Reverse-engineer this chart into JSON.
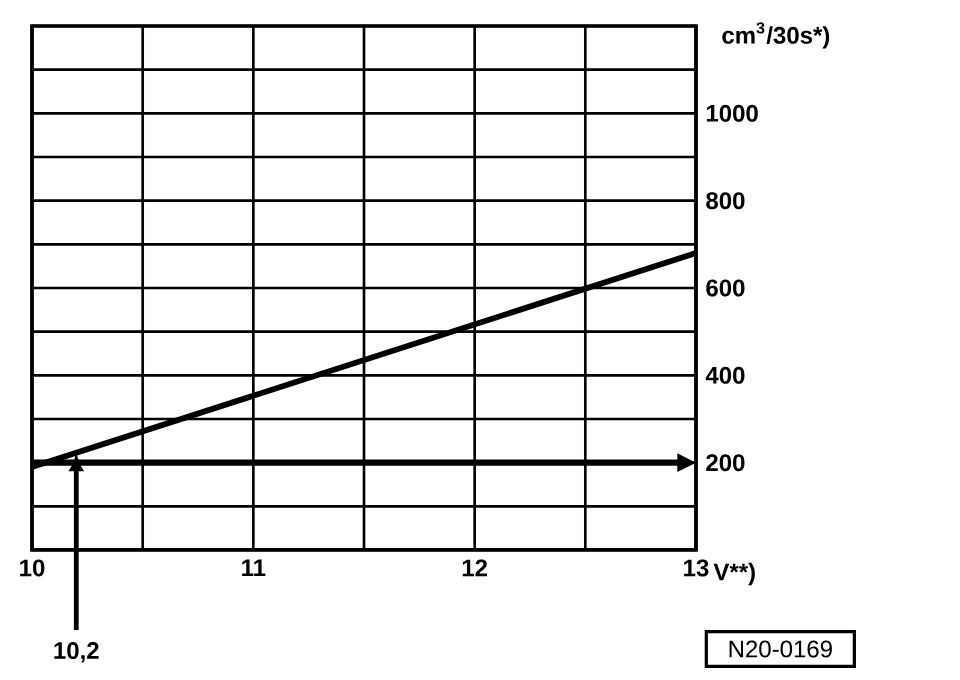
{
  "chart_data": {
    "type": "line",
    "x": [
      10,
      13
    ],
    "values": [
      190,
      680
    ],
    "color": "#000000",
    "xlim": [
      10,
      13
    ],
    "ylim": [
      0,
      1200
    ],
    "xticks": [
      10,
      {
        "value": 10.5,
        "label": null
      },
      11,
      {
        "value": 11.5,
        "label": null
      },
      12,
      {
        "value": 12.5,
        "label": null
      },
      13
    ],
    "yticks": [
      {
        "value": 0,
        "label": null
      },
      {
        "value": 100,
        "label": null
      },
      200,
      {
        "value": 300,
        "label": null
      },
      400,
      {
        "value": 500,
        "label": null
      },
      600,
      {
        "value": 700,
        "label": null
      },
      800,
      {
        "value": 900,
        "label": null
      },
      1000,
      {
        "value": 1100,
        "label": null
      },
      {
        "value": 1200,
        "label": null
      }
    ],
    "xlabel": "V**)",
    "ylabel": "cm$^{3}$/30s*)",
    "grid": true,
    "ref_lines": [
      {
        "axis": "y",
        "value": 200,
        "color": "#000000",
        "line_style": "solid"
      }
    ],
    "annotations": [
      {
        "text": "10,2",
        "x": 10.2,
        "y": 223
      },
      "N20-0169"
    ]
  }
}
